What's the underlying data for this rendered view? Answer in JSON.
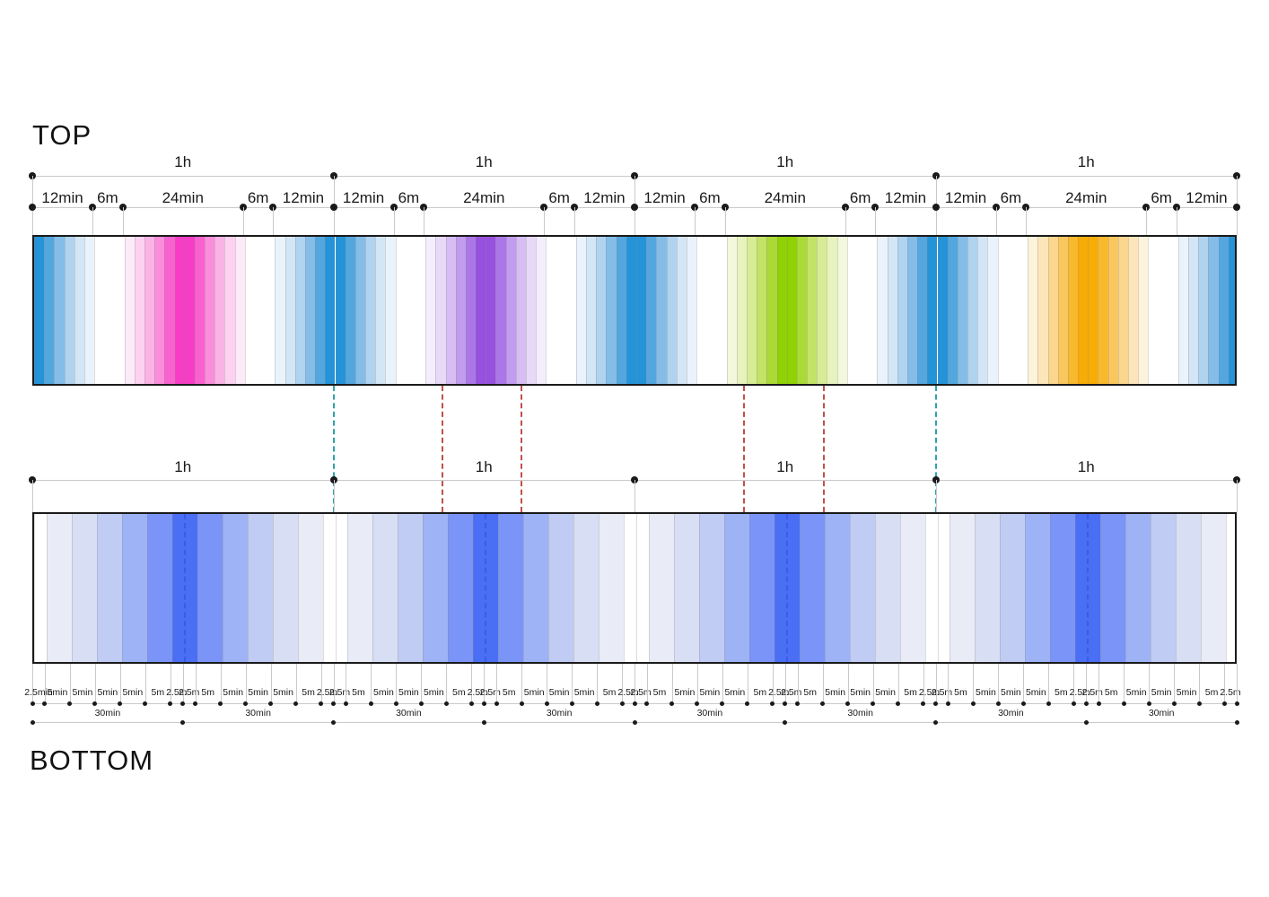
{
  "titles": {
    "top": "TOP",
    "bottom": "BOTTOM"
  },
  "chart_data": {
    "type": "timeline-stripe-diagram",
    "total_minutes": 240,
    "hours": 4,
    "top": {
      "hour_label": "1h",
      "segment_labels": [
        "12min",
        "6m",
        "24min",
        "6m",
        "12min"
      ],
      "segment_minutes": [
        12,
        6,
        24,
        6,
        12
      ],
      "stripe_minutes": 2,
      "boundary_peak_palette": "blue",
      "hour_center_palettes": [
        "pink",
        "purple",
        "green",
        "orange"
      ],
      "gradient_shape": "light-to-dark-to-light, dark stripe centered on hour boundaries (blue) and on hour centers (colored), white 6m gaps between"
    },
    "bottom": {
      "hour_label": "1h",
      "block_label": "30min",
      "blocks": 8,
      "block_minutes": 30,
      "stripe_minutes": 5,
      "edge_gap_minutes": 2.5,
      "first_block_tick_labels": [
        "2.5min",
        "5min",
        "5min",
        "5min",
        "5min",
        "5m",
        "2.5m"
      ],
      "tick_labels": [
        "2.5m",
        "5m",
        "5min",
        "5min",
        "5min",
        "5m",
        "2.5m"
      ],
      "tick_widths_minutes": [
        2.5,
        5,
        5,
        5,
        5,
        5,
        2.5
      ],
      "palette": "periwinkle",
      "gradient_shape": "per hour: white 2.5m, 11 five-minute stripes rising to darkest at hour center, white 2.5m"
    },
    "palettes": {
      "blue": [
        "#eaf3fb",
        "#d3e6f6",
        "#b0d3ef",
        "#84bde7",
        "#53a6de",
        "#2493d8"
      ],
      "pink": [
        "#fdeaf8",
        "#fcd2f0",
        "#fbb3e6",
        "#fa8edb",
        "#f961d0",
        "#f73cc5"
      ],
      "purple": [
        "#f4edfc",
        "#e8d9f9",
        "#d8bdf4",
        "#c29cee",
        "#ab77e7",
        "#9750e0"
      ],
      "green": [
        "#f3f8dd",
        "#e7f3bc",
        "#d7ec95",
        "#c3e366",
        "#abda37",
        "#90d204"
      ],
      "orange": [
        "#fdf3da",
        "#fce6b9",
        "#fbd78e",
        "#fac75f",
        "#f9b92f",
        "#f8ad06"
      ],
      "periwinkle": [
        "#e9ecf7",
        "#d8def4",
        "#c0ccf4",
        "#9eb2f6",
        "#7b94f7",
        "#4a6ef4"
      ]
    },
    "connector_colors": {
      "teal": "#2fa3ad",
      "red": "#c0504d"
    },
    "connectors": [
      {
        "minute": 60,
        "color": "teal"
      },
      {
        "minute": 180,
        "color": "teal"
      },
      {
        "minute": 81.7,
        "color": "red"
      },
      {
        "minute": 97.5,
        "color": "red"
      },
      {
        "minute": 141.9,
        "color": "red"
      },
      {
        "minute": 157.7,
        "color": "red"
      }
    ],
    "hour_center_guides_minutes": [
      30,
      90,
      150,
      210
    ]
  }
}
